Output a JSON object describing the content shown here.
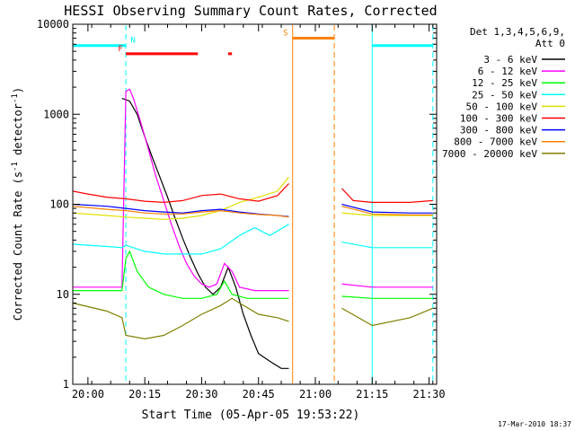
{
  "chart_data": {
    "type": "line",
    "title": "HESSI Observing Summary Count Rates, Corrected",
    "xlabel": "Start Time (05-Apr-05 19:53:22)",
    "ylabel_main": "Corrected Count Rate (s",
    "ylabel_sup1": "-1",
    "ylabel_mid": " detector",
    "ylabel_sup2": "-1",
    "ylabel_end": ")",
    "footer": "17-Mar-2010 18:37",
    "y_scale": "log",
    "ylim": [
      1,
      10000
    ],
    "xlim": [
      "19:56",
      "21:32"
    ],
    "x_ticks": [
      "20:00",
      "20:15",
      "20:30",
      "20:45",
      "21:00",
      "21:15",
      "21:30"
    ],
    "y_ticks": [
      "1",
      "10",
      "100",
      "1000",
      "10000"
    ],
    "legend_header": [
      "Det 1,3,4,5,6,9,",
      "Att 0"
    ],
    "legend": [
      {
        "label": "3 - 6 keV",
        "color": "#000000"
      },
      {
        "label": "6 - 12 keV",
        "color": "#ff00ff"
      },
      {
        "label": "12 - 25 keV",
        "color": "#00ff00"
      },
      {
        "label": "25 - 50 keV",
        "color": "#00ffff"
      },
      {
        "label": "50 - 100 keV",
        "color": "#e0e000"
      },
      {
        "label": "100 - 300 keV",
        "color": "#ff0000"
      },
      {
        "label": "300 - 800 keV",
        "color": "#0000ff"
      },
      {
        "label": "800 - 7000 keV",
        "color": "#ff8000"
      },
      {
        "label": "7000 - 20000 keV",
        "color": "#808000"
      }
    ],
    "flags": {
      "N": {
        "label": "N",
        "color": "#00ffff",
        "value": 5800,
        "segments": [
          [
            "19:56",
            "20:10"
          ],
          [
            "21:15",
            "21:31"
          ]
        ]
      },
      "F": {
        "label": "F",
        "color": "#ff0000",
        "value": 4700,
        "segments": [
          [
            "20:10",
            "20:29"
          ],
          [
            "20:37",
            "20:38"
          ]
        ]
      },
      "S": {
        "label": "S",
        "color": "#ff8000",
        "value": 7000,
        "segments": [
          [
            "20:54",
            "21:05"
          ]
        ]
      }
    },
    "vlines": [
      {
        "x": "19:56",
        "color": "#00ffff",
        "style": "solid"
      },
      {
        "x": "20:10",
        "color": "#00ffff",
        "style": "dashed"
      },
      {
        "x": "20:54",
        "color": "#ff8000",
        "style": "solid"
      },
      {
        "x": "21:05",
        "color": "#ff8000",
        "style": "dashed"
      },
      {
        "x": "21:15",
        "color": "#00ffff",
        "style": "solid"
      },
      {
        "x": "21:31",
        "color": "#00ffff",
        "style": "dashed"
      }
    ],
    "data_gap": [
      "20:54",
      "21:07"
    ],
    "series": [
      {
        "name": "3 - 6 keV",
        "color": "#000000",
        "x": [
          "20:09",
          "20:11",
          "20:13",
          "20:15",
          "20:17",
          "20:19",
          "20:21",
          "20:23",
          "20:25",
          "20:27",
          "20:29",
          "20:31",
          "20:33",
          "20:35",
          "20:37",
          "20:39",
          "20:41",
          "20:43",
          "20:45",
          "20:48",
          "20:51",
          "20:53"
        ],
        "y": [
          1500,
          1400,
          1000,
          560,
          330,
          200,
          120,
          70,
          42,
          26,
          17,
          12,
          10,
          12,
          20,
          12,
          6,
          3.5,
          2.2,
          1.8,
          1.5,
          1.5
        ]
      },
      {
        "name": "6 - 12 keV",
        "color": "#ff00ff",
        "x": [
          "19:56",
          "20:00",
          "20:05",
          "20:09",
          "20:10",
          "20:11",
          "20:12",
          "20:14",
          "20:16",
          "20:18",
          "20:20",
          "20:22",
          "20:24",
          "20:26",
          "20:28",
          "20:30",
          "20:32",
          "20:34",
          "20:36",
          "20:38",
          "20:40",
          "20:44",
          "20:48",
          "20:53",
          "21:07",
          "21:15",
          "21:25",
          "21:31"
        ],
        "y": [
          12,
          12,
          12,
          12,
          1800,
          1900,
          1500,
          800,
          400,
          200,
          110,
          60,
          35,
          22,
          16,
          13,
          12,
          13,
          22,
          18,
          12,
          11,
          11,
          11,
          13,
          12,
          12,
          12
        ]
      },
      {
        "name": "12 - 25 keV",
        "color": "#00ff00",
        "x": [
          "19:56",
          "20:05",
          "20:09",
          "20:10",
          "20:11",
          "20:13",
          "20:16",
          "20:20",
          "20:25",
          "20:30",
          "20:34",
          "20:36",
          "20:38",
          "20:42",
          "20:48",
          "20:53",
          "21:07",
          "21:15",
          "21:25",
          "21:31"
        ],
        "y": [
          11,
          11,
          11,
          25,
          30,
          18,
          12,
          10,
          9,
          9,
          10,
          14,
          10,
          9,
          9,
          9,
          9.5,
          9,
          9,
          9
        ]
      },
      {
        "name": "25 - 50 keV",
        "color": "#00ffff",
        "x": [
          "19:56",
          "20:05",
          "20:09",
          "20:10",
          "20:15",
          "20:20",
          "20:25",
          "20:30",
          "20:35",
          "20:40",
          "20:44",
          "20:48",
          "20:53",
          "21:07",
          "21:15",
          "21:25",
          "21:31"
        ],
        "y": [
          36,
          34,
          33,
          35,
          30,
          28,
          28,
          28,
          32,
          45,
          55,
          45,
          60,
          38,
          33,
          33,
          33
        ]
      },
      {
        "name": "50 - 100 keV",
        "color": "#e0e000",
        "x": [
          "19:56",
          "20:05",
          "20:10",
          "20:15",
          "20:20",
          "20:25",
          "20:30",
          "20:35",
          "20:40",
          "20:45",
          "20:50",
          "20:53",
          "21:07",
          "21:15",
          "21:25",
          "21:31"
        ],
        "y": [
          80,
          75,
          72,
          70,
          68,
          70,
          75,
          85,
          105,
          120,
          140,
          200,
          80,
          75,
          75,
          75
        ]
      },
      {
        "name": "100 - 300 keV",
        "color": "#ff0000",
        "x": [
          "19:56",
          "20:00",
          "20:05",
          "20:10",
          "20:15",
          "20:20",
          "20:25",
          "20:30",
          "20:35",
          "20:40",
          "20:45",
          "20:50",
          "20:53",
          "21:07",
          "21:10",
          "21:15",
          "21:25",
          "21:31"
        ],
        "y": [
          140,
          130,
          120,
          115,
          108,
          105,
          110,
          125,
          130,
          115,
          108,
          125,
          170,
          150,
          110,
          105,
          105,
          110
        ]
      },
      {
        "name": "300 - 800 keV",
        "color": "#0000ff",
        "x": [
          "19:56",
          "20:05",
          "20:10",
          "20:15",
          "20:20",
          "20:25",
          "20:30",
          "20:35",
          "20:40",
          "20:45",
          "20:50",
          "20:53",
          "21:07",
          "21:15",
          "21:25",
          "21:31"
        ],
        "y": [
          100,
          95,
          90,
          85,
          82,
          80,
          85,
          88,
          82,
          78,
          75,
          73,
          100,
          82,
          80,
          80
        ]
      },
      {
        "name": "800 - 7000 keV",
        "color": "#ff8000",
        "x": [
          "19:56",
          "20:05",
          "20:10",
          "20:15",
          "20:20",
          "20:25",
          "20:30",
          "20:35",
          "20:40",
          "20:45",
          "20:50",
          "20:53",
          "21:07",
          "21:15",
          "21:25",
          "21:31"
        ],
        "y": [
          95,
          88,
          85,
          80,
          78,
          78,
          82,
          85,
          80,
          77,
          75,
          72,
          95,
          78,
          76,
          76
        ]
      },
      {
        "name": "7000 - 20000 keV",
        "color": "#808000",
        "x": [
          "19:56",
          "20:05",
          "20:09",
          "20:10",
          "20:15",
          "20:20",
          "20:25",
          "20:30",
          "20:35",
          "20:38",
          "20:40",
          "20:45",
          "20:50",
          "20:53",
          "21:07",
          "21:15",
          "21:25",
          "21:31"
        ],
        "y": [
          8,
          6.5,
          5.5,
          3.5,
          3.2,
          3.5,
          4.5,
          6,
          7.5,
          9,
          8,
          6,
          5.5,
          5,
          7,
          4.5,
          5.5,
          7
        ]
      }
    ]
  }
}
